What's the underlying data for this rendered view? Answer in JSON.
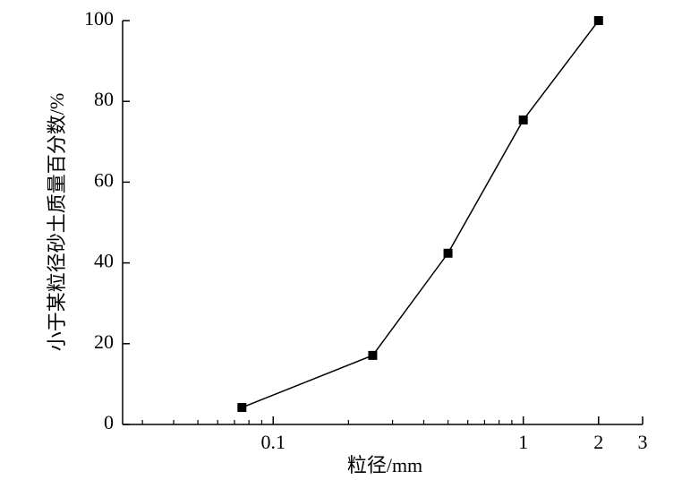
{
  "chart_data": {
    "type": "line",
    "xlabel": "粒径/mm",
    "ylabel": "小于某粒径砂土质量百分数/%",
    "x": [
      0.075,
      0.25,
      0.5,
      1,
      2
    ],
    "series": [
      {
        "color": "#000000",
        "values": [
          4.2,
          17.1,
          42.4,
          75.4,
          100
        ]
      }
    ],
    "xscale": "log",
    "xlim": [
      0.025,
      3
    ],
    "xticks": [
      0.1,
      1,
      2,
      3
    ],
    "minor_xticks": [
      0.03,
      0.04,
      0.05,
      0.06,
      0.07,
      0.08,
      0.09,
      0.2,
      0.3,
      0.4,
      0.5,
      0.6,
      0.7,
      0.8,
      0.9
    ],
    "ylim": [
      0,
      100
    ],
    "yticks": [
      0,
      20,
      40,
      60,
      80,
      100
    ],
    "grid": false
  }
}
